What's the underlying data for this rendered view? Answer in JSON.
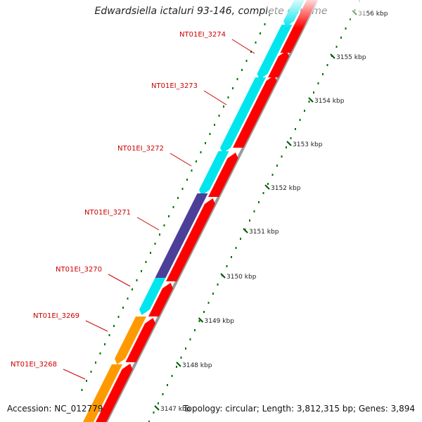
{
  "title": "Edwardsiella ictaluri 93-146, complete genome",
  "footer": {
    "accession": "Accession: NC_012779",
    "summary": "Topology: circular; Length: 3,812,315 bp; Genes: 3,894"
  },
  "gene_labels": [
    "NT01EI_3274",
    "NT01EI_3273",
    "NT01EI_3272",
    "NT01EI_3271",
    "NT01EI_3270",
    "NT01EI_3269",
    "NT01EI_3268"
  ],
  "ticks": [
    "3156 kbp",
    "3155 kbp",
    "3154 kbp",
    "3153 kbp",
    "3152 kbp",
    "3151 kbp",
    "3150 kbp",
    "3149 kbp",
    "3148 kbp",
    "3147 kbp"
  ],
  "colors": {
    "gene_label": "#cc0000",
    "forward_cds": "#ff0000",
    "reverse_cyan": "#00e5ee",
    "reverse_purple": "#4b3f9a",
    "reverse_orange": "#ff9900",
    "backbone": "#999999",
    "minor_tick": "#007700",
    "major_tick": "#005500"
  }
}
